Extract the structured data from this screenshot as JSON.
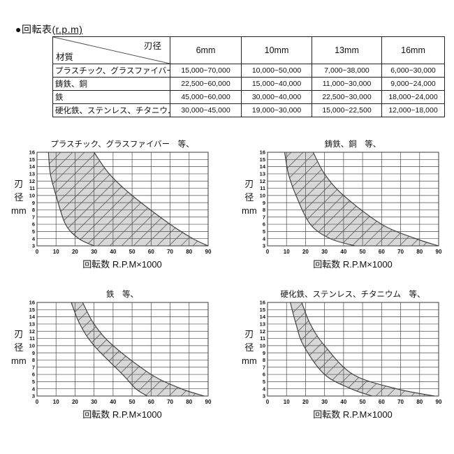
{
  "heading": {
    "plain": "●回転表(",
    "underlined": "r.p.m)"
  },
  "table": {
    "corner": {
      "top_right": "刃径",
      "bottom_left": "材質"
    },
    "columns": [
      "6mm",
      "10mm",
      "13mm",
      "16mm"
    ],
    "rows": [
      {
        "material": "プラスチック、グラスファイバー",
        "values": [
          "15,000~70,000",
          "10,000~50,000",
          "7,000~38,000",
          "6,000~30,000"
        ]
      },
      {
        "material": "鋳鉄、銅",
        "values": [
          "22,500~60,000",
          "15,000~40,000",
          "11,000~30,000",
          "9,000~24,000"
        ]
      },
      {
        "material": "鉄",
        "values": [
          "45,000~60,000",
          "30,000~40,000",
          "22,500~30,000",
          "18,000~24,000"
        ]
      },
      {
        "material": "硬化鉄、ステンレス、チタニウム",
        "values": [
          "30,000~45,000",
          "19,000~30,000",
          "15,000~22,500",
          "12,000~18,000"
        ]
      }
    ]
  },
  "colors": {
    "band_fill": "#d8d8d8",
    "grid_line": "#4a4a4a",
    "hatch_line": "#606060",
    "curve_line": "#383838",
    "border": "#222222",
    "text": "#111111"
  },
  "chart_data": [
    {
      "type": "area",
      "title": "プラスチック、グラスファイバー　等、",
      "xlabel": "回転数 R.P.M×1000",
      "ylabel": "刃径 mm",
      "ylabel_lines": [
        "刃",
        "径",
        "mm"
      ],
      "xlim": [
        0,
        90
      ],
      "ylim": [
        3,
        16
      ],
      "x_ticks": [
        0,
        10,
        20,
        30,
        40,
        50,
        60,
        70,
        80,
        90
      ],
      "y_ticks": [
        3,
        4,
        5,
        6,
        7,
        8,
        9,
        10,
        11,
        12,
        13,
        14,
        15,
        16
      ],
      "grid": true,
      "band_rpm_x1000_vs_diameter_mm": {
        "lower": [
          [
            6,
            16
          ],
          [
            7,
            13
          ],
          [
            10,
            10
          ],
          [
            15,
            6
          ],
          [
            22,
            4
          ],
          [
            30,
            3
          ]
        ],
        "upper": [
          [
            30,
            16
          ],
          [
            38,
            13
          ],
          [
            50,
            10
          ],
          [
            70,
            6
          ],
          [
            82,
            4
          ],
          [
            90,
            3
          ]
        ]
      }
    },
    {
      "type": "area",
      "title": "鋳鉄、銅　等、",
      "xlabel": "回転数 R.P.M×1000",
      "ylabel": "刃径 mm",
      "ylabel_lines": [
        "刃",
        "径",
        "mm"
      ],
      "xlim": [
        0,
        90
      ],
      "ylim": [
        3,
        16
      ],
      "x_ticks": [
        0,
        10,
        20,
        30,
        40,
        50,
        60,
        70,
        80,
        90
      ],
      "y_ticks": [
        3,
        4,
        5,
        6,
        7,
        8,
        9,
        10,
        11,
        12,
        13,
        14,
        15,
        16
      ],
      "grid": true,
      "band_rpm_x1000_vs_diameter_mm": {
        "lower": [
          [
            9,
            16
          ],
          [
            11,
            13
          ],
          [
            15,
            10
          ],
          [
            22.5,
            6
          ],
          [
            33,
            4
          ],
          [
            46,
            3
          ]
        ],
        "upper": [
          [
            24,
            16
          ],
          [
            30,
            13
          ],
          [
            40,
            10
          ],
          [
            60,
            6
          ],
          [
            78,
            4
          ],
          [
            90,
            3
          ]
        ]
      }
    },
    {
      "type": "area",
      "title": "鉄　等、",
      "xlabel": "回転数 R.P.M×1000",
      "ylabel": "刃径 mm",
      "ylabel_lines": [
        "刃",
        "径",
        "mm"
      ],
      "xlim": [
        0,
        90
      ],
      "ylim": [
        3,
        16
      ],
      "x_ticks": [
        0,
        10,
        20,
        30,
        40,
        50,
        60,
        70,
        80,
        90
      ],
      "y_ticks": [
        3,
        4,
        5,
        6,
        7,
        8,
        9,
        10,
        11,
        12,
        13,
        14,
        15,
        16
      ],
      "grid": true,
      "band_rpm_x1000_vs_diameter_mm": {
        "lower": [
          [
            18,
            16
          ],
          [
            22.5,
            13
          ],
          [
            30,
            10
          ],
          [
            45,
            6
          ],
          [
            52,
            4
          ],
          [
            58,
            3
          ]
        ],
        "upper": [
          [
            24,
            16
          ],
          [
            30,
            13
          ],
          [
            40,
            10
          ],
          [
            60,
            6
          ],
          [
            76,
            4
          ],
          [
            88,
            3
          ]
        ]
      }
    },
    {
      "type": "area",
      "title": "硬化鉄、ステンレス、チタニウム　等、",
      "xlabel": "回転数 R.P.M×1000",
      "ylabel": "刃径 mm",
      "ylabel_lines": [
        "刃",
        "径",
        "mm"
      ],
      "xlim": [
        0,
        90
      ],
      "ylim": [
        3,
        16
      ],
      "x_ticks": [
        0,
        10,
        20,
        30,
        40,
        50,
        60,
        70,
        80,
        90
      ],
      "y_ticks": [
        3,
        4,
        5,
        6,
        7,
        8,
        9,
        10,
        11,
        12,
        13,
        14,
        15,
        16
      ],
      "grid": true,
      "band_rpm_x1000_vs_diameter_mm": {
        "lower": [
          [
            12,
            16
          ],
          [
            15,
            13
          ],
          [
            19,
            10
          ],
          [
            30,
            6
          ],
          [
            44,
            4
          ],
          [
            55,
            3
          ]
        ],
        "upper": [
          [
            18,
            16
          ],
          [
            22.5,
            13
          ],
          [
            30,
            10
          ],
          [
            45,
            6
          ],
          [
            68,
            4
          ],
          [
            88,
            3
          ]
        ]
      }
    }
  ]
}
